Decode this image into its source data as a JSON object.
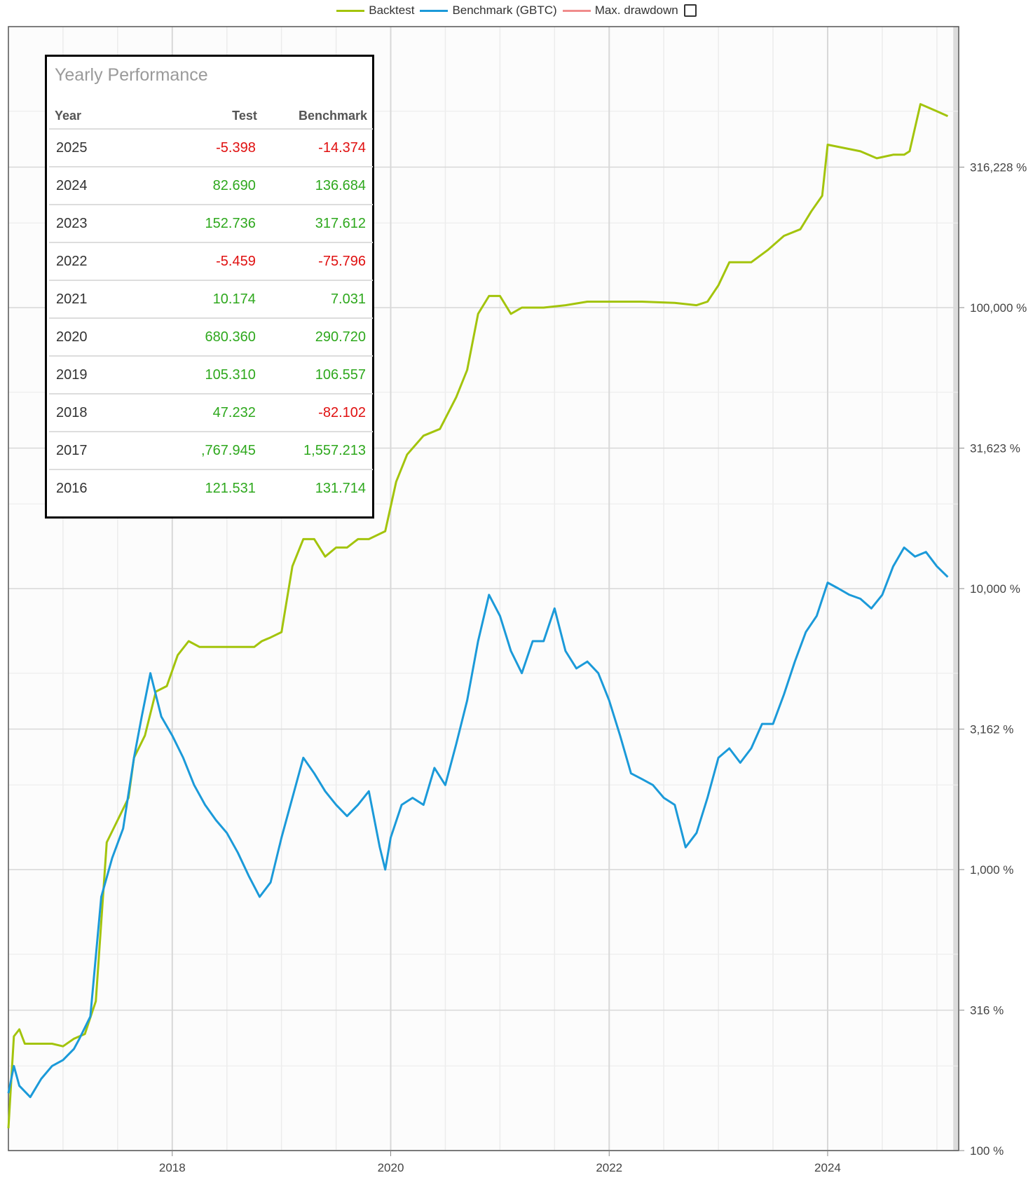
{
  "legend": {
    "items": [
      {
        "label": "Backtest",
        "color": "#a3c40c"
      },
      {
        "label": "Benchmark (GBTC)",
        "color": "#1b9ad9"
      },
      {
        "label": "Max. drawdown",
        "color": "#f08c8c"
      }
    ]
  },
  "table": {
    "title": "Yearly Performance",
    "headers": {
      "year": "Year",
      "test": "Test",
      "benchmark": "Benchmark"
    },
    "rows": [
      {
        "year": "2025",
        "test": "-5.398",
        "benchmark": "-14.374"
      },
      {
        "year": "2024",
        "test": "82.690",
        "benchmark": "136.684"
      },
      {
        "year": "2023",
        "test": "152.736",
        "benchmark": "317.612"
      },
      {
        "year": "2022",
        "test": "-5.459",
        "benchmark": "-75.796"
      },
      {
        "year": "2021",
        "test": "10.174",
        "benchmark": "7.031"
      },
      {
        "year": "2020",
        "test": "680.360",
        "benchmark": "290.720"
      },
      {
        "year": "2019",
        "test": "105.310",
        "benchmark": "106.557"
      },
      {
        "year": "2018",
        "test": "47.232",
        "benchmark": "-82.102"
      },
      {
        "year": "2017",
        "test": ",767.945",
        "benchmark": "1,557.213"
      },
      {
        "year": "2016",
        "test": "121.531",
        "benchmark": "131.714"
      }
    ]
  },
  "chart_data": {
    "type": "line",
    "title": "",
    "xlabel": "",
    "ylabel": "",
    "y_scale": "log",
    "ylim": [
      100,
      1000000
    ],
    "xlim": [
      2016.5,
      2025.2
    ],
    "grid": true,
    "legend_position": "top-center",
    "x_ticks": [
      2018,
      2020,
      2022,
      2024
    ],
    "x_tick_labels": [
      "2018",
      "2020",
      "2022",
      "2024"
    ],
    "y_ticks": [
      100,
      316,
      1000,
      3162,
      10000,
      31623,
      100000,
      316228
    ],
    "y_tick_labels": [
      "100 %",
      "316 %",
      "1,000 %",
      "3,162 %",
      "10,000 %",
      "31,623 %",
      "100,000 %",
      "316,228 %"
    ],
    "series": [
      {
        "name": "Backtest",
        "color": "#a3c40c",
        "x": [
          2016.5,
          2016.55,
          2016.6,
          2016.65,
          2016.9,
          2017.0,
          2017.1,
          2017.2,
          2017.3,
          2017.4,
          2017.5,
          2017.6,
          2017.65,
          2017.75,
          2017.85,
          2017.95,
          2018.05,
          2018.15,
          2018.25,
          2018.4,
          2018.6,
          2018.75,
          2018.82,
          2018.9,
          2019.0,
          2019.1,
          2019.2,
          2019.3,
          2019.4,
          2019.5,
          2019.6,
          2019.7,
          2019.8,
          2019.95,
          2020.05,
          2020.15,
          2020.3,
          2020.45,
          2020.6,
          2020.7,
          2020.8,
          2020.9,
          2021.0,
          2021.1,
          2021.2,
          2021.4,
          2021.6,
          2021.8,
          2022.0,
          2022.3,
          2022.6,
          2022.8,
          2022.9,
          2023.0,
          2023.1,
          2023.3,
          2023.45,
          2023.6,
          2023.75,
          2023.85,
          2023.95,
          2024.0,
          2024.3,
          2024.45,
          2024.6,
          2024.7,
          2024.75,
          2024.85,
          2025.0,
          2025.1
        ],
        "y": [
          120,
          255,
          270,
          240,
          240,
          235,
          250,
          260,
          340,
          1250,
          1500,
          1800,
          2500,
          3000,
          4300,
          4500,
          5800,
          6500,
          6200,
          6200,
          6200,
          6200,
          6500,
          6700,
          7000,
          12000,
          15000,
          15000,
          13000,
          14000,
          14000,
          15000,
          15000,
          16000,
          24000,
          30000,
          35000,
          37000,
          48000,
          60000,
          95000,
          110000,
          110000,
          95000,
          100000,
          100000,
          102000,
          105000,
          105000,
          105000,
          104000,
          102000,
          105000,
          120000,
          145000,
          145000,
          160000,
          180000,
          190000,
          220000,
          250000,
          380000,
          360000,
          340000,
          350000,
          350000,
          360000,
          530000,
          500000,
          480000
        ]
      },
      {
        "name": "Benchmark (GBTC)",
        "color": "#1b9ad9",
        "x": [
          2016.5,
          2016.55,
          2016.6,
          2016.7,
          2016.8,
          2016.9,
          2017.0,
          2017.1,
          2017.15,
          2017.25,
          2017.35,
          2017.45,
          2017.55,
          2017.65,
          2017.72,
          2017.8,
          2017.9,
          2018.0,
          2018.1,
          2018.2,
          2018.3,
          2018.4,
          2018.5,
          2018.6,
          2018.7,
          2018.8,
          2018.9,
          2019.0,
          2019.1,
          2019.2,
          2019.3,
          2019.4,
          2019.5,
          2019.6,
          2019.7,
          2019.8,
          2019.9,
          2019.95,
          2020.0,
          2020.1,
          2020.2,
          2020.3,
          2020.4,
          2020.5,
          2020.6,
          2020.7,
          2020.8,
          2020.9,
          2021.0,
          2021.1,
          2021.2,
          2021.3,
          2021.4,
          2021.5,
          2021.6,
          2021.7,
          2021.8,
          2021.9,
          2022.0,
          2022.1,
          2022.2,
          2022.3,
          2022.4,
          2022.5,
          2022.6,
          2022.7,
          2022.8,
          2022.9,
          2023.0,
          2023.1,
          2023.2,
          2023.3,
          2023.4,
          2023.5,
          2023.6,
          2023.7,
          2023.8,
          2023.9,
          2024.0,
          2024.1,
          2024.2,
          2024.3,
          2024.4,
          2024.5,
          2024.6,
          2024.7,
          2024.8,
          2024.9,
          2025.0,
          2025.1
        ],
        "y": [
          160,
          200,
          170,
          155,
          180,
          200,
          210,
          230,
          250,
          300,
          800,
          1100,
          1400,
          2500,
          3500,
          5000,
          3500,
          3000,
          2500,
          2000,
          1700,
          1500,
          1350,
          1150,
          950,
          800,
          900,
          1300,
          1800,
          2500,
          2200,
          1900,
          1700,
          1550,
          1700,
          1900,
          1200,
          1000,
          1300,
          1700,
          1800,
          1700,
          2300,
          2000,
          2800,
          4000,
          6500,
          9500,
          8000,
          6000,
          5000,
          6500,
          6500,
          8500,
          6000,
          5200,
          5500,
          5000,
          4000,
          3000,
          2200,
          2100,
          2000,
          1800,
          1700,
          1200,
          1350,
          1800,
          2500,
          2700,
          2400,
          2700,
          3300,
          3300,
          4200,
          5500,
          7000,
          8000,
          10500,
          10000,
          9500,
          9200,
          8500,
          9500,
          12000,
          14000,
          13000,
          13500,
          12000,
          11000
        ]
      }
    ]
  }
}
